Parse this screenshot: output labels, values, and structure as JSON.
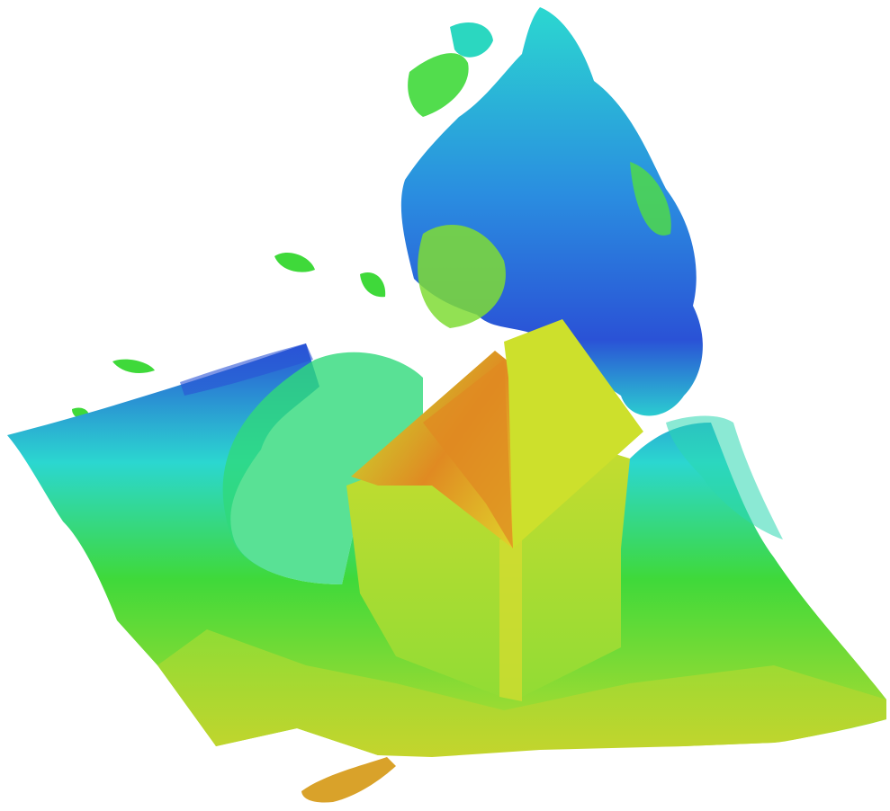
{
  "colormap": {
    "low": "#d9a22a",
    "mid_low": "#c7dc2f",
    "mid": "#3fd93a",
    "mid_high": "#2bd7d0",
    "high": "#2a52d6",
    "peak": "#e08a22"
  }
}
